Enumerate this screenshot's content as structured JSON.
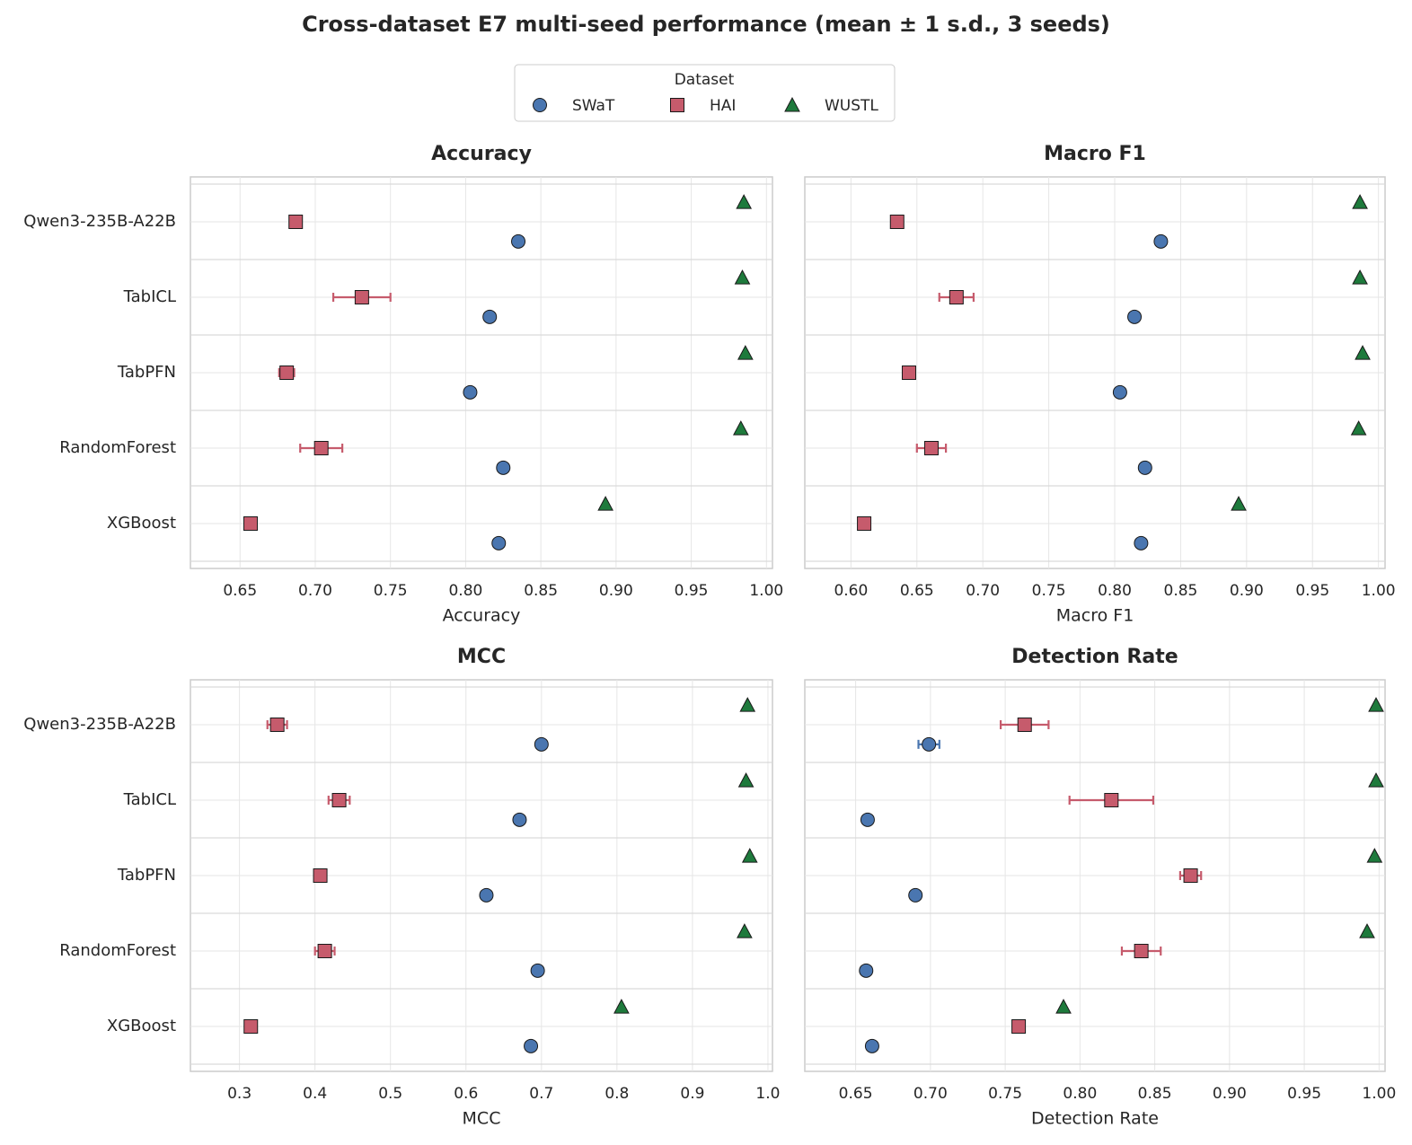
{
  "title": "Cross-dataset E7 multi-seed performance (mean ± 1 s.d., 3 seeds)",
  "legend_title": "Dataset",
  "chart_data": [
    {
      "type": "dot",
      "title": "Accuracy",
      "xlabel": "Accuracy",
      "categories": [
        "Qwen3-235B-A22B",
        "TabICL",
        "TabPFN",
        "RandomForest",
        "XGBoost"
      ],
      "series": [
        {
          "name": "SWaT",
          "color": "#4a76b0",
          "marker": "circle",
          "values": [
            0.835,
            0.816,
            0.803,
            0.825,
            0.822
          ],
          "errors": [
            0,
            0,
            0,
            0,
            0
          ]
        },
        {
          "name": "HAI",
          "color": "#c65b6c",
          "marker": "square",
          "values": [
            0.687,
            0.731,
            0.681,
            0.704,
            0.657
          ],
          "errors": [
            0,
            0.019,
            0.005,
            0.014,
            0
          ]
        },
        {
          "name": "WUSTL",
          "color": "#1e7a3c",
          "marker": "triangle",
          "values": [
            0.985,
            0.984,
            0.986,
            0.983,
            0.893
          ],
          "errors": [
            0,
            0,
            0,
            0,
            0
          ]
        }
      ],
      "xlim": [
        0.617,
        1.004
      ],
      "xticks": [
        0.65,
        {
          "value": 0.7,
          "label": "0.70"
        },
        0.75,
        {
          "value": 0.8,
          "label": "0.80"
        },
        0.85,
        {
          "value": 0.9,
          "label": "0.90"
        },
        0.95,
        {
          "value": 1,
          "label": "1.00"
        }
      ],
      "grid": true
    },
    {
      "type": "dot",
      "title": "Macro F1",
      "xlabel": "Macro F1",
      "series": [
        {
          "name": "SWaT",
          "color": "#4a76b0",
          "marker": "circle",
          "values": [
            0.835,
            0.815,
            0.804,
            0.823,
            0.82
          ],
          "errors": [
            0,
            0,
            0,
            0,
            0
          ]
        },
        {
          "name": "HAI",
          "color": "#c65b6c",
          "marker": "square",
          "values": [
            0.635,
            0.68,
            0.644,
            0.661,
            0.61
          ],
          "errors": [
            0,
            0.013,
            0.003,
            0.011,
            0
          ]
        },
        {
          "name": "WUSTL",
          "color": "#1e7a3c",
          "marker": "triangle",
          "values": [
            0.986,
            0.986,
            0.988,
            0.985,
            0.894
          ],
          "errors": [
            0,
            0,
            0,
            0,
            0
          ]
        }
      ],
      "xlim": [
        0.565,
        1.005
      ],
      "xticks": [
        {
          "value": 0.6,
          "label": "0.60"
        },
        0.65,
        {
          "value": 0.7,
          "label": "0.70"
        },
        0.75,
        {
          "value": 0.8,
          "label": "0.80"
        },
        0.85,
        {
          "value": 0.9,
          "label": "0.90"
        },
        0.95,
        {
          "value": 1,
          "label": "1.00"
        }
      ],
      "grid": true
    },
    {
      "type": "dot",
      "title": "MCC",
      "xlabel": "MCC",
      "categories": [
        "Qwen3-235B-A22B",
        "TabICL",
        "TabPFN",
        "RandomForest",
        "XGBoost"
      ],
      "series": [
        {
          "name": "SWaT",
          "color": "#4a76b0",
          "marker": "circle",
          "values": [
            0.7,
            0.671,
            0.627,
            0.695,
            0.686
          ],
          "errors": [
            0,
            0,
            0,
            0,
            0
          ]
        },
        {
          "name": "HAI",
          "color": "#c65b6c",
          "marker": "square",
          "values": [
            0.35,
            0.432,
            0.407,
            0.413,
            0.315
          ],
          "errors": [
            0.013,
            0.014,
            0.005,
            0.013,
            0
          ]
        },
        {
          "name": "WUSTL",
          "color": "#1e7a3c",
          "marker": "triangle",
          "values": [
            0.973,
            0.971,
            0.976,
            0.969,
            0.806
          ],
          "errors": [
            0,
            0,
            0,
            0,
            0
          ]
        }
      ],
      "xlim": [
        0.235,
        1.006
      ],
      "xticks": [
        0.3,
        0.4,
        0.5,
        0.6,
        0.7,
        0.8,
        0.9,
        {
          "value": 1,
          "label": "1.0"
        }
      ],
      "grid": true
    },
    {
      "type": "dot",
      "title": "Detection Rate",
      "xlabel": "Detection Rate",
      "series": [
        {
          "name": "SWaT",
          "color": "#4a76b0",
          "marker": "circle",
          "values": [
            0.699,
            0.658,
            0.69,
            0.657,
            0.661
          ],
          "errors": [
            0.007,
            0,
            0,
            0,
            0
          ]
        },
        {
          "name": "HAI",
          "color": "#c65b6c",
          "marker": "square",
          "values": [
            0.763,
            0.821,
            0.874,
            0.841,
            0.759
          ],
          "errors": [
            0.016,
            0.028,
            0.007,
            0.013,
            0
          ]
        },
        {
          "name": "WUSTL",
          "color": "#1e7a3c",
          "marker": "triangle",
          "values": [
            0.998,
            0.998,
            0.997,
            0.992,
            0.789
          ],
          "errors": [
            0,
            0,
            0,
            0,
            0
          ]
        }
      ],
      "xlim": [
        0.616,
        1.004
      ],
      "xticks": [
        0.65,
        {
          "value": 0.7,
          "label": "0.70"
        },
        0.75,
        {
          "value": 0.8,
          "label": "0.80"
        },
        0.85,
        {
          "value": 0.9,
          "label": "0.90"
        },
        0.95,
        {
          "value": 1,
          "label": "1.00"
        }
      ],
      "grid": true
    }
  ]
}
